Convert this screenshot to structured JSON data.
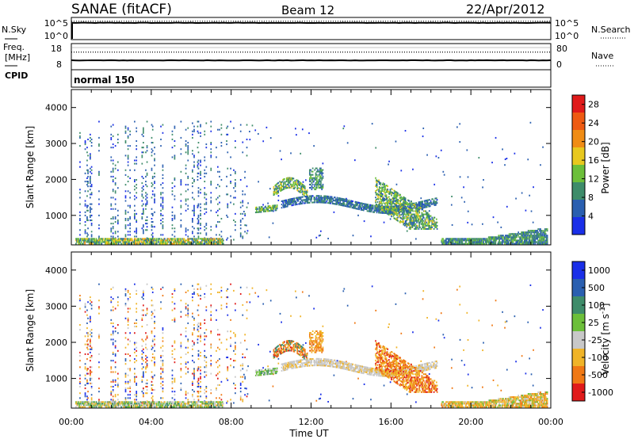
{
  "header": {
    "station": "SANAE (fitACF)",
    "beam": "Beam 12",
    "date": "22/Apr/2012"
  },
  "chart_data": [
    {
      "type": "line",
      "panel": "summary",
      "left_labels": [
        "N.Sky",
        "Freq.",
        "[MHz]",
        "CPID"
      ],
      "right_labels": [
        "N.Search",
        "Nave"
      ],
      "nsky_ticks": [
        "10^5",
        "10^0"
      ],
      "nsearch_ticks": [
        "10^5",
        "10^0"
      ],
      "freq_ticks": [
        18,
        8
      ],
      "nave_ticks": [
        80,
        0
      ],
      "nsky_level": 4.8,
      "nsearch_level": 4.8,
      "freq_level": 12,
      "nave_level": 70,
      "cpid_label": "normal 150"
    },
    {
      "type": "heatmap",
      "panel": "power",
      "ylabel": "Slant Range [km]",
      "ylim": [
        180,
        4500
      ],
      "yticks": [
        1000,
        2000,
        3000,
        4000
      ],
      "xlabel": "Time UT",
      "xlim_hours": [
        0,
        24
      ],
      "xticks": [
        "00:00",
        "04:00",
        "08:00",
        "12:00",
        "16:00",
        "20:00",
        "00:00"
      ],
      "colorbar": {
        "label": "Power [dB]",
        "ticks": [
          4,
          8,
          12,
          16,
          20,
          24,
          28
        ],
        "range": [
          0,
          30
        ],
        "colors": [
          "#1a2fe8",
          "#2a5fb0",
          "#3e8c6a",
          "#6cbf3a",
          "#e8c81e",
          "#f08c14",
          "#ee5a12",
          "#e01a1a"
        ]
      },
      "features": [
        {
          "name": "near-range ground scatter",
          "t": [
            0.2,
            7.5
          ],
          "range": [
            200,
            320
          ],
          "value": 12
        },
        {
          "name": "scattered echoes",
          "t": [
            0.5,
            8.5
          ],
          "range": [
            300,
            3600
          ],
          "value": 5
        },
        {
          "name": "band A",
          "t": [
            9.2,
            11.5
          ],
          "range": [
            1050,
            1300
          ],
          "value": 10
        },
        {
          "name": "band B",
          "t": [
            10.3,
            11.8
          ],
          "range": [
            1400,
            2000
          ],
          "value": 9
        },
        {
          "name": "main arc",
          "t": [
            11.5,
            18.5
          ],
          "range": [
            800,
            1500
          ],
          "value": 6
        },
        {
          "name": "evening ground scatter",
          "t": [
            18.5,
            23.8
          ],
          "range": [
            200,
            550
          ],
          "value": 8
        }
      ]
    },
    {
      "type": "heatmap",
      "panel": "velocity",
      "ylabel": "Slant Range [km]",
      "ylim": [
        180,
        4500
      ],
      "yticks": [
        1000,
        2000,
        3000,
        4000
      ],
      "xlabel": "Time UT",
      "xlim_hours": [
        0,
        24
      ],
      "xticks": [
        "00:00",
        "04:00",
        "08:00",
        "12:00",
        "16:00",
        "20:00",
        "00:00"
      ],
      "colorbar": {
        "label": "Velocity [m s-1]",
        "ticks": [
          1000,
          500,
          100,
          25,
          -25,
          -100,
          -500,
          -1000
        ],
        "colors": [
          "#1a2fe8",
          "#2a5fb0",
          "#3e8c6a",
          "#6cbf3a",
          "#c8c8c8",
          "#f0b428",
          "#f07814",
          "#e01a1a"
        ]
      }
    }
  ]
}
